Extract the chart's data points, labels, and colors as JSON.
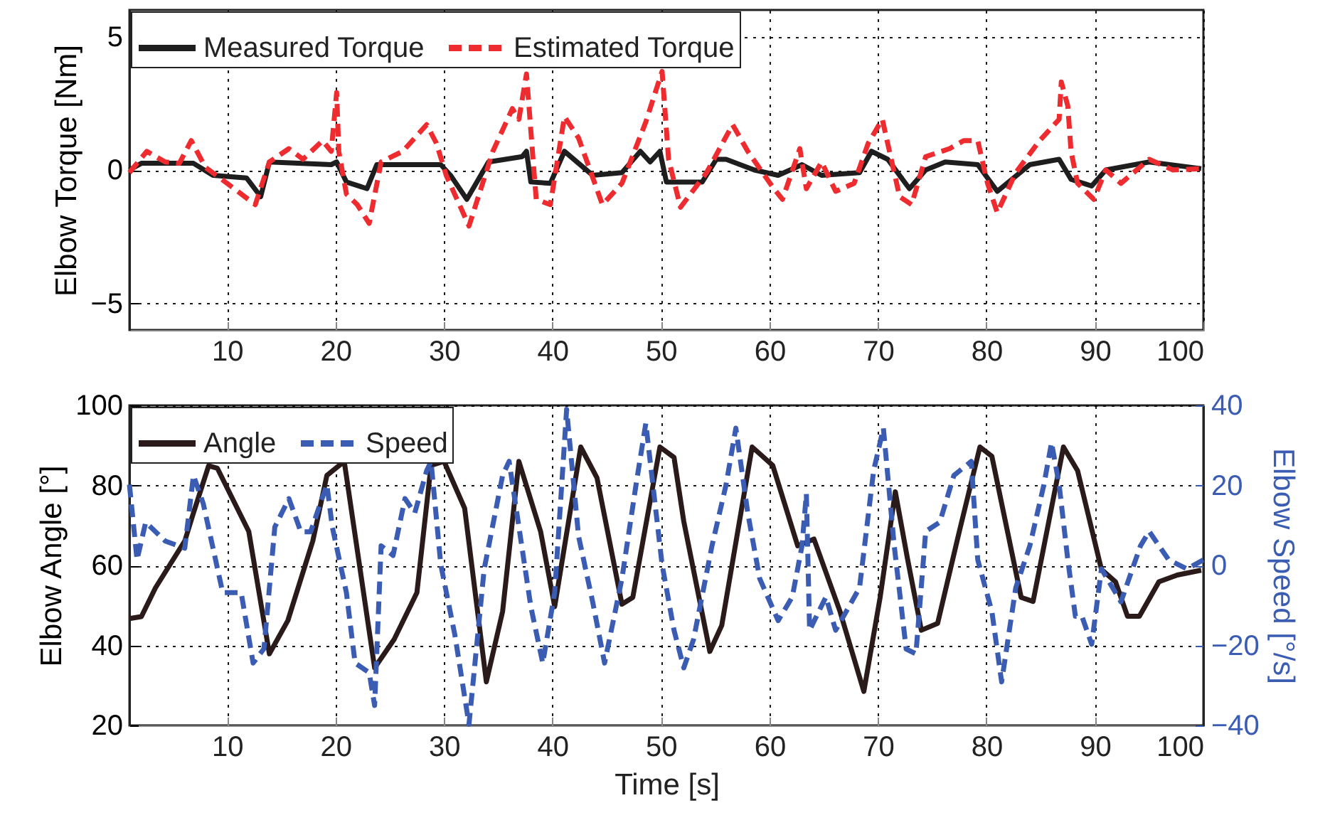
{
  "chart_data": [
    {
      "type": "line",
      "ylabel": "Elbow Torque [Nm]",
      "xlim": [
        1,
        100
      ],
      "xticks": [
        10,
        20,
        30,
        40,
        50,
        60,
        70,
        80,
        90,
        100
      ],
      "ylim": [
        -6,
        6
      ],
      "yticks": [
        -5,
        0,
        5
      ],
      "grid": true,
      "legend": "top left",
      "series": [
        {
          "name": "Measured Torque",
          "color": "#1e1e1e",
          "line_style": "solid",
          "x": [
            1,
            2.1,
            6.9,
            8.7,
            11.8,
            13.1,
            13.9,
            19.6,
            20.1,
            21.0,
            22.9,
            23.8,
            29.7,
            30.6,
            32.1,
            34.1,
            37.2,
            37.6,
            38.0,
            39.8,
            41.1,
            43.7,
            46.4,
            48.1,
            49.0,
            49.9,
            50.5,
            53.8,
            55.1,
            56.0,
            58.6,
            60.8,
            63.0,
            64.8,
            68.3,
            69.4,
            70.9,
            72.9,
            74.4,
            76.2,
            79.2,
            81.0,
            84.0,
            86.7,
            87.8,
            89.7,
            91.0,
            95.0,
            99.8
          ],
          "values": [
            0,
            0.25,
            0.25,
            -0.2,
            -0.3,
            -1.0,
            0.3,
            0.2,
            0.3,
            -0.45,
            -0.7,
            0.2,
            0.2,
            -0.2,
            -1.1,
            0.3,
            0.5,
            0.7,
            -0.45,
            -0.5,
            0.7,
            -0.2,
            -0.1,
            0.7,
            0.3,
            0.7,
            -0.45,
            -0.45,
            0.4,
            0.4,
            0,
            -0.2,
            0.2,
            -0.2,
            -0.1,
            0.7,
            0.4,
            -0.7,
            0,
            0.3,
            0.2,
            -0.8,
            0.2,
            0.4,
            -0.35,
            -0.6,
            0,
            0.3,
            0.05
          ]
        },
        {
          "name": "Estimated Torque",
          "color": "#ee2b2f",
          "line_style": "dashed",
          "x": [
            1,
            2.6,
            4.3,
            5.6,
            6.7,
            8.0,
            10.0,
            12.6,
            13.9,
            15.7,
            17.0,
            18.8,
            19.6,
            20.1,
            20.3,
            21.0,
            22.0,
            23.1,
            24.2,
            26.2,
            28.4,
            29.3,
            30.2,
            32.3,
            34.5,
            36.3,
            36.9,
            37.6,
            38.3,
            38.5,
            39.8,
            41.1,
            42.4,
            44.6,
            46.4,
            48.6,
            50.1,
            50.7,
            51.8,
            54.2,
            56.6,
            58.0,
            60.4,
            61.2,
            62.8,
            63.4,
            64.8,
            66.1,
            67.8,
            69.1,
            70.4,
            72.0,
            73.1,
            74.4,
            76.6,
            77.9,
            79.2,
            80.1,
            81.0,
            82.7,
            84.9,
            86.7,
            86.9,
            87.5,
            87.8,
            88.4,
            89.9,
            91.0,
            92.4,
            95.0,
            97.2,
            99.8
          ],
          "values": [
            -0.1,
            0.7,
            0.3,
            0.25,
            1.1,
            0.1,
            -0.5,
            -1.3,
            0.3,
            0.8,
            0.4,
            1.1,
            0.7,
            2.9,
            0.7,
            -0.9,
            -1.3,
            -2.0,
            0.3,
            0.7,
            1.7,
            1.0,
            -0.2,
            -2.1,
            0.7,
            2.3,
            1.9,
            3.6,
            -0.1,
            -1.1,
            -1.3,
            2.0,
            1.2,
            -1.3,
            -0.5,
            1.8,
            3.7,
            0.4,
            -1.4,
            -0.1,
            1.7,
            0.7,
            -0.7,
            -1.1,
            0.8,
            -0.7,
            0.3,
            -0.8,
            -0.5,
            1.0,
            1.9,
            -1.0,
            -1.3,
            0.5,
            0.8,
            1.1,
            1.1,
            -0.5,
            -1.6,
            -0.1,
            1.1,
            1.9,
            3.3,
            2.4,
            0.7,
            -0.5,
            -1.1,
            0,
            -0.5,
            0.4,
            0,
            0.05
          ]
        }
      ]
    },
    {
      "type": "line",
      "xlabel": "Time [s]",
      "ylabel": "Elbow Angle [°]",
      "y2label": "Elbow Speed [°/s]",
      "xlim": [
        1,
        100
      ],
      "xticks": [
        10,
        20,
        30,
        40,
        50,
        60,
        70,
        80,
        90,
        100
      ],
      "ylim": [
        20,
        100
      ],
      "yticks": [
        20,
        40,
        60,
        80,
        100
      ],
      "y2lim": [
        -40,
        40
      ],
      "y2ticks": [
        -40,
        -20,
        0,
        20,
        40
      ],
      "grid": true,
      "legend": "top left",
      "series": [
        {
          "name": "Angle",
          "color": "#2b1a1a",
          "line_style": "solid",
          "x": [
            1,
            2.1,
            3.4,
            6.1,
            6.9,
            8.3,
            9.1,
            12.0,
            13.9,
            15.6,
            17.9,
            19.2,
            20.8,
            23.6,
            25.4,
            27.5,
            28.8,
            30.0,
            31.9,
            33.9,
            35.4,
            36.9,
            38.9,
            40.2,
            42.6,
            44.1,
            46.4,
            47.4,
            49.9,
            51.2,
            52.1,
            54.5,
            55.6,
            58.4,
            60.3,
            62.6,
            64.1,
            66.5,
            68.7,
            70.2,
            71.6,
            72.7,
            74.0,
            75.5,
            77.5,
            79.4,
            80.5,
            83.2,
            84.3,
            87.1,
            88.4,
            90.6,
            91.9,
            93.0,
            94.1,
            95.9,
            97.6,
            99.8
          ],
          "values": [
            46.7,
            47.2,
            54.4,
            66.1,
            73.1,
            84.9,
            84.3,
            68.5,
            37.9,
            46.2,
            66.1,
            82.5,
            86,
            34.4,
            41.5,
            53.2,
            85,
            86,
            74.3,
            30.9,
            48.5,
            86,
            68.5,
            49.7,
            89.6,
            81.9,
            50.3,
            52,
            89.6,
            87,
            71,
            38.5,
            45,
            89.6,
            85,
            64.9,
            66.6,
            48.5,
            28.5,
            52,
            78.4,
            62,
            43.8,
            45.5,
            68.5,
            89.6,
            87.3,
            52,
            51,
            89.6,
            83.7,
            59,
            55.9,
            47.3,
            47.3,
            55.9,
            57.6,
            58.8
          ]
        },
        {
          "name": "Speed",
          "color": "#3b5cb3",
          "line_style": "dashed",
          "axis": "y2",
          "x": [
            1,
            1.7,
            2.5,
            4.3,
            6.1,
            6.9,
            7.8,
            9.6,
            11.3,
            12.4,
            13.4,
            14.4,
            15.7,
            16.8,
            17.7,
            19.2,
            19.7,
            21.0,
            21.8,
            23.1,
            23.6,
            24.2,
            25.3,
            26.4,
            27.3,
            28.4,
            28.8,
            29.7,
            31.0,
            32.3,
            33.7,
            35.4,
            36.0,
            38.0,
            39.1,
            40.2,
            41.3,
            42.4,
            43.7,
            44.8,
            46.4,
            47.7,
            48.6,
            50.1,
            51.2,
            52.1,
            53.0,
            54.7,
            56.0,
            56.9,
            58.0,
            59.1,
            60.8,
            62.1,
            63.0,
            63.4,
            63.7,
            65.2,
            66.1,
            68.3,
            69.6,
            70.5,
            71.5,
            72.6,
            73.5,
            74.4,
            75.7,
            77.0,
            78.6,
            79.2,
            80.5,
            81.4,
            82.7,
            84.0,
            85.3,
            86.0,
            86.7,
            87.5,
            88.2,
            88.8,
            89.7,
            90.6,
            92.4,
            94.2,
            95.0,
            96.8,
            98.5,
            100
          ],
          "values": [
            20.2,
            1.4,
            10.8,
            6.1,
            4.3,
            22.5,
            15.5,
            -6.8,
            -6.8,
            -24.4,
            -20.8,
            9.6,
            16.7,
            8.4,
            8.4,
            20.2,
            9.6,
            -6.8,
            -24.4,
            -26.8,
            -35,
            4.9,
            2.5,
            16.7,
            13.1,
            23.7,
            26,
            0.2,
            -17.4,
            -39.7,
            -0.9,
            22.5,
            26,
            -10.3,
            -24.4,
            -6.8,
            39,
            7.3,
            -9.1,
            -24.4,
            -3.3,
            20.2,
            35.5,
            0.2,
            -16.2,
            -25.6,
            -18.5,
            4.9,
            20.2,
            34.3,
            13.1,
            -3.3,
            -13.8,
            -7.9,
            4.9,
            17.9,
            -16.2,
            -7.9,
            -16.2,
            -5.6,
            23.7,
            34.3,
            4.9,
            -20.9,
            -22.1,
            8.5,
            10.8,
            22.5,
            26,
            1.4,
            -11.5,
            -29.1,
            -5.6,
            4.9,
            20.2,
            30.7,
            20.2,
            1.4,
            -12.7,
            -12.7,
            -19.7,
            -0.9,
            -9.1,
            4.9,
            8.5,
            1.4,
            -0.9,
            1.4
          ]
        }
      ]
    }
  ]
}
